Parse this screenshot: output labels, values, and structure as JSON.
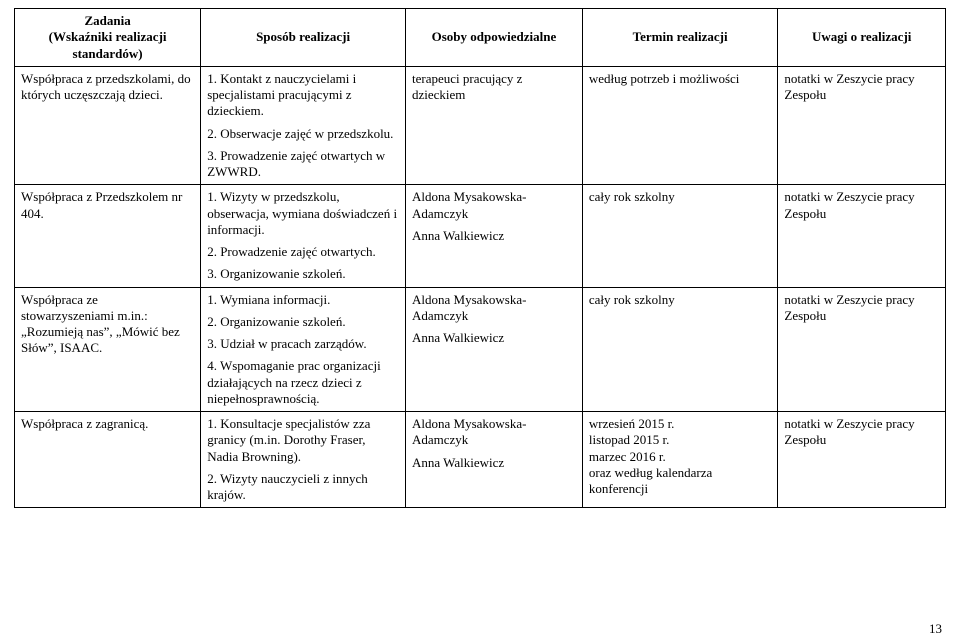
{
  "columns": [
    "Zadania\n(Wskaźniki realizacji standardów)",
    "Sposób realizacji",
    "Osoby odpowiedzialne",
    "Termin realizacji",
    "Uwagi o realizacji"
  ],
  "rows": [
    {
      "zadania": "Współpraca z przedszkolami, do których uczęszczają dzieci.",
      "sposob": [
        "1. Kontakt z nauczycielami i specjalistami pracującymi z dzieckiem.",
        "2. Obserwacje zajęć w przedszkolu.",
        "3. Prowadzenie zajęć otwartych w ZWWRD."
      ],
      "osoby": [
        "terapeuci pracujący z dzieckiem"
      ],
      "termin": "według potrzeb i możliwości",
      "uwagi": "notatki w Zeszycie pracy Zespołu"
    },
    {
      "zadania": "Współpraca z Przedszkolem nr 404.",
      "sposob": [
        "1. Wizyty w przedszkolu, obserwacja, wymiana doświadczeń i informacji.",
        "2. Prowadzenie zajęć otwartych.",
        "3. Organizowanie szkoleń."
      ],
      "osoby": [
        "Aldona Mysakowska-Adamczyk",
        "Anna Walkiewicz"
      ],
      "termin": "cały rok szkolny",
      "uwagi": "notatki w Zeszycie pracy Zespołu"
    },
    {
      "zadania": "Współpraca ze stowarzyszeniami m.in.: „Rozumieją nas”, „Mówić bez Słów”, ISAAC.",
      "sposob": [
        "1. Wymiana informacji.",
        "2. Organizowanie szkoleń.",
        "3. Udział w pracach zarządów.",
        "4. Wspomaganie prac organizacji działających na rzecz dzieci z niepełnosprawnością."
      ],
      "osoby": [
        "Aldona Mysakowska-Adamczyk",
        "",
        "",
        "Anna Walkiewicz"
      ],
      "termin": "cały rok szkolny",
      "uwagi": "notatki w Zeszycie pracy Zespołu"
    },
    {
      "zadania": "Współpraca z zagranicą.",
      "sposob": [
        "1. Konsultacje specjalistów zza granicy (m.in. Dorothy Fraser, Nadia Browning).",
        "2. Wizyty nauczycieli z innych krajów."
      ],
      "osoby": [
        "Aldona Mysakowska-Adamczyk",
        "",
        "Anna Walkiewicz"
      ],
      "termin": "wrzesień 2015 r.\nlistopad 2015 r.\nmarzec 2016 r.\noraz według kalendarza konferencji",
      "uwagi": "notatki w Zeszycie pracy Zespołu"
    }
  ],
  "page_number": "13"
}
